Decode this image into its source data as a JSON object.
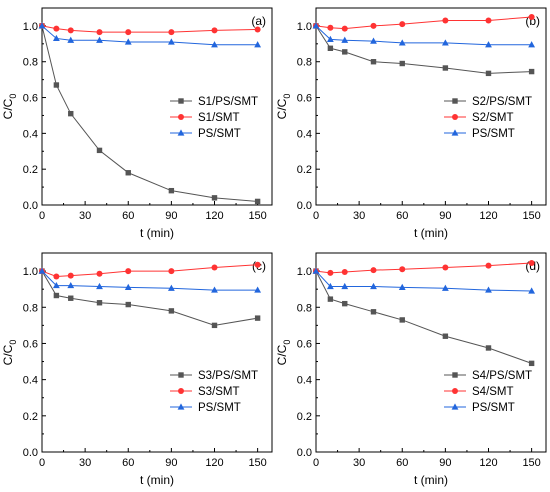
{
  "chart_data": [
    {
      "type": "line",
      "panel_label": "(a)",
      "x": [
        0,
        10,
        20,
        40,
        60,
        90,
        120,
        150
      ],
      "xlabel": "t (min)",
      "ylabel": "C/C0",
      "xlim": [
        0,
        160
      ],
      "ylim": [
        0,
        1.1
      ],
      "xticks": [
        0,
        30,
        60,
        90,
        120,
        150
      ],
      "yticks": [
        0.0,
        0.2,
        0.4,
        0.6,
        0.8,
        1.0
      ],
      "legend_position": "center-right",
      "grid": false,
      "series": [
        {
          "name": "S1/PS/SMT",
          "color": "#555555",
          "marker": "square",
          "values": [
            1.0,
            0.67,
            0.51,
            0.305,
            0.18,
            0.08,
            0.04,
            0.02
          ]
        },
        {
          "name": "S1/SMT",
          "color": "#ff3333",
          "marker": "circle",
          "values": [
            1.0,
            0.985,
            0.975,
            0.965,
            0.965,
            0.965,
            0.975,
            0.98
          ]
        },
        {
          "name": "PS/SMT",
          "color": "#2266dd",
          "marker": "triangle",
          "values": [
            1.0,
            0.93,
            0.92,
            0.92,
            0.91,
            0.91,
            0.895,
            0.895
          ]
        }
      ]
    },
    {
      "type": "line",
      "panel_label": "(b)",
      "x": [
        0,
        10,
        20,
        40,
        60,
        90,
        120,
        150
      ],
      "xlabel": "t (min)",
      "ylabel": "C/C0",
      "xlim": [
        0,
        160
      ],
      "ylim": [
        0,
        1.1
      ],
      "xticks": [
        0,
        30,
        60,
        90,
        120,
        150
      ],
      "yticks": [
        0.0,
        0.2,
        0.4,
        0.6,
        0.8,
        1.0
      ],
      "legend_position": "center-right",
      "grid": false,
      "series": [
        {
          "name": "S2/PS/SMT",
          "color": "#555555",
          "marker": "square",
          "values": [
            1.0,
            0.875,
            0.855,
            0.8,
            0.79,
            0.765,
            0.735,
            0.745
          ]
        },
        {
          "name": "S2/SMT",
          "color": "#ff3333",
          "marker": "circle",
          "values": [
            1.0,
            0.99,
            0.985,
            1.0,
            1.01,
            1.03,
            1.03,
            1.05
          ]
        },
        {
          "name": "PS/SMT",
          "color": "#2266dd",
          "marker": "triangle",
          "values": [
            1.0,
            0.925,
            0.92,
            0.915,
            0.905,
            0.905,
            0.895,
            0.895
          ]
        }
      ]
    },
    {
      "type": "line",
      "panel_label": "(c)",
      "x": [
        0,
        10,
        20,
        40,
        60,
        90,
        120,
        150
      ],
      "xlabel": "t (min)",
      "ylabel": "C/C0",
      "xlim": [
        0,
        160
      ],
      "ylim": [
        0,
        1.1
      ],
      "xticks": [
        0,
        30,
        60,
        90,
        120,
        150
      ],
      "yticks": [
        0.0,
        0.2,
        0.4,
        0.6,
        0.8,
        1.0
      ],
      "legend_position": "bottom-right",
      "grid": false,
      "series": [
        {
          "name": "S3/PS/SMT",
          "color": "#555555",
          "marker": "square",
          "values": [
            1.0,
            0.865,
            0.85,
            0.825,
            0.815,
            0.78,
            0.7,
            0.74
          ]
        },
        {
          "name": "S3/SMT",
          "color": "#ff3333",
          "marker": "circle",
          "values": [
            1.0,
            0.97,
            0.975,
            0.985,
            1.0,
            1.0,
            1.02,
            1.035
          ]
        },
        {
          "name": "PS/SMT",
          "color": "#2266dd",
          "marker": "triangle",
          "values": [
            1.0,
            0.92,
            0.92,
            0.915,
            0.91,
            0.905,
            0.895,
            0.895
          ]
        }
      ]
    },
    {
      "type": "line",
      "panel_label": "(d)",
      "x": [
        0,
        10,
        20,
        40,
        60,
        90,
        120,
        150
      ],
      "xlabel": "t (min)",
      "ylabel": "C/C0",
      "xlim": [
        0,
        160
      ],
      "ylim": [
        0,
        1.1
      ],
      "xticks": [
        0,
        30,
        60,
        90,
        120,
        150
      ],
      "yticks": [
        0.0,
        0.2,
        0.4,
        0.6,
        0.8,
        1.0
      ],
      "legend_position": "bottom-right",
      "grid": false,
      "series": [
        {
          "name": "S4/PS/SMT",
          "color": "#555555",
          "marker": "square",
          "values": [
            1.0,
            0.845,
            0.82,
            0.775,
            0.73,
            0.64,
            0.575,
            0.49
          ]
        },
        {
          "name": "S4/SMT",
          "color": "#ff3333",
          "marker": "circle",
          "values": [
            1.0,
            0.99,
            0.995,
            1.005,
            1.01,
            1.02,
            1.03,
            1.045
          ]
        },
        {
          "name": "PS/SMT",
          "color": "#2266dd",
          "marker": "triangle",
          "values": [
            1.0,
            0.915,
            0.915,
            0.915,
            0.91,
            0.905,
            0.895,
            0.89
          ]
        }
      ]
    }
  ]
}
